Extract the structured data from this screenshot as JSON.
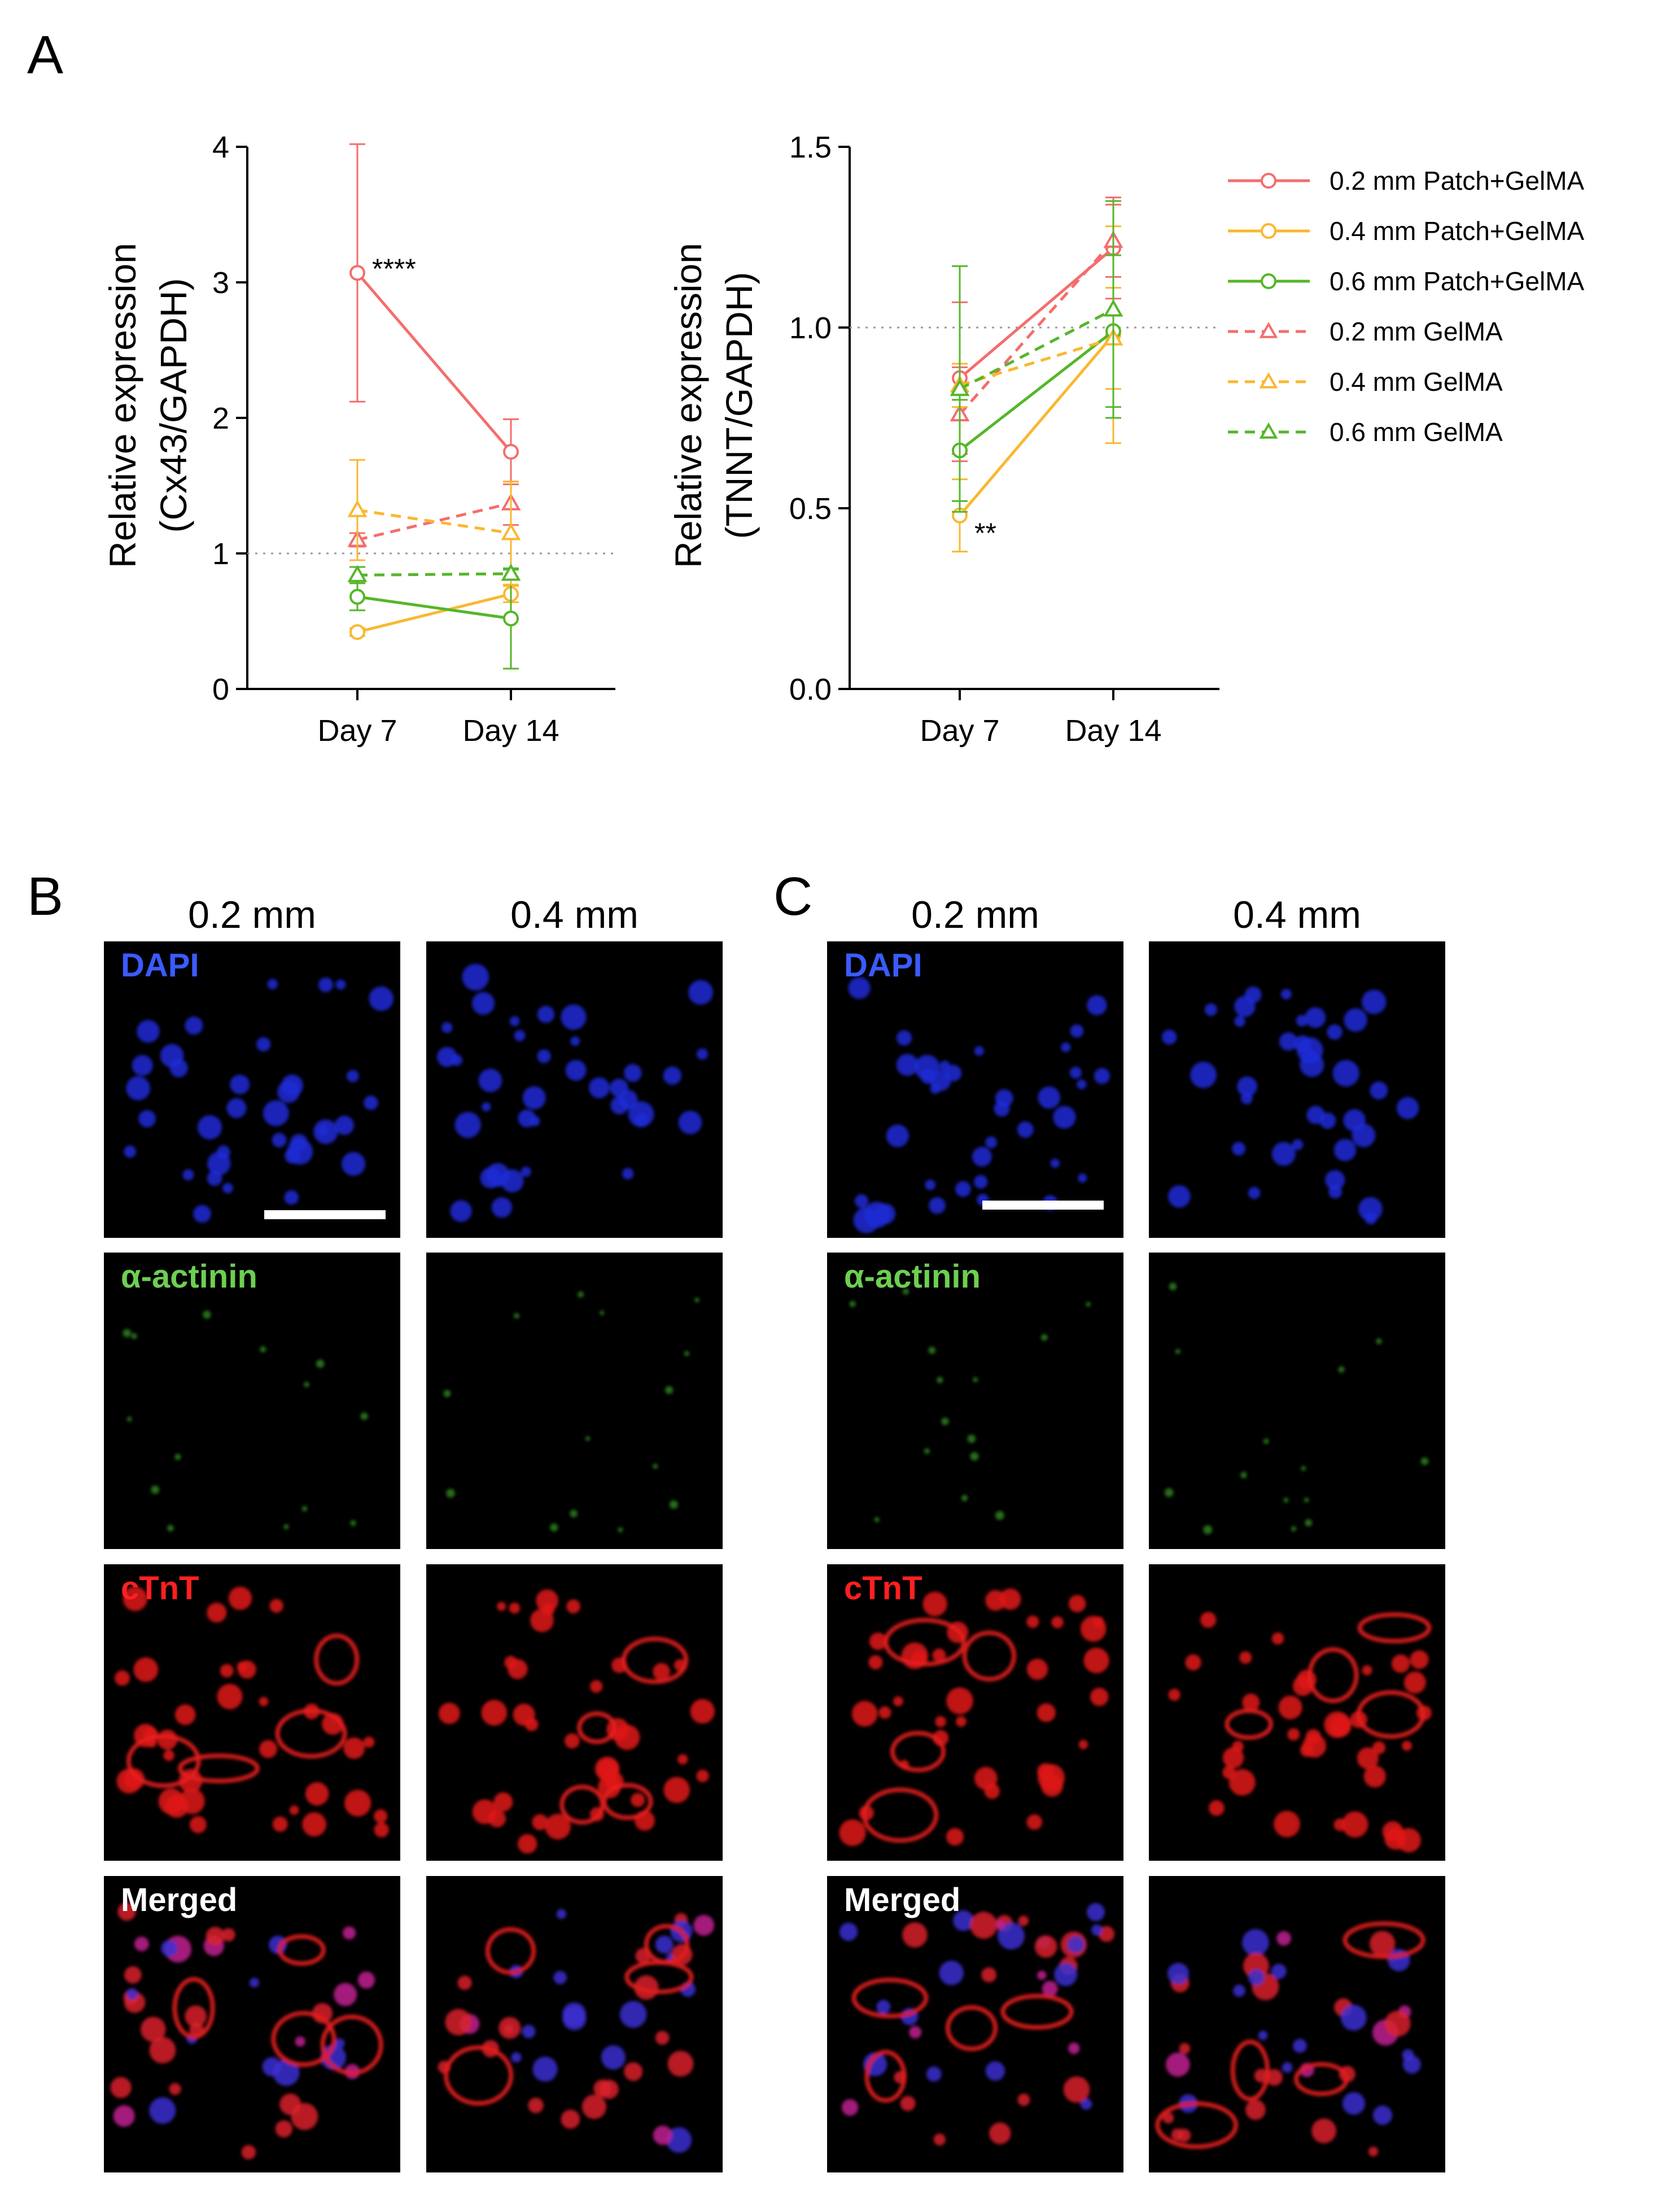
{
  "colors": {
    "patch_0_2": "#f46d6d",
    "patch_0_4": "#f9b830",
    "patch_0_6": "#55b629",
    "gel_0_2": "#f46d6d",
    "gel_0_4": "#f9b830",
    "gel_0_6": "#55b629",
    "dapi_label": "#3a5bff",
    "actinin_label": "#6dcf52",
    "ctnt_label": "#ff2020",
    "merged_label": "#ffffff"
  },
  "panels": {
    "A": "A",
    "B": "B",
    "C": "C"
  },
  "chart_data": [
    {
      "id": "cx43",
      "type": "line",
      "categories": [
        "Day 7",
        "Day 14"
      ],
      "ylabel_line1": "Relative expression",
      "ylabel_line2": "(Cx43/GAPDH)",
      "ylim": [
        0,
        4
      ],
      "yticks": [
        "0",
        "1",
        "2",
        "3",
        "4"
      ],
      "reference_line": 1,
      "series": [
        {
          "name": "0.2 mm Patch+GelMA",
          "color": "#f46d6d",
          "dash": false,
          "marker": "circle",
          "values": [
            3.07,
            1.75
          ],
          "err": [
            0.95,
            0.24
          ]
        },
        {
          "name": "0.4 mm Patch+GelMA",
          "color": "#f9b830",
          "dash": false,
          "marker": "circle",
          "values": [
            0.42,
            0.7
          ],
          "err": [
            0.03,
            0.06
          ]
        },
        {
          "name": "0.6 mm Patch+GelMA",
          "color": "#55b629",
          "dash": false,
          "marker": "circle",
          "values": [
            0.68,
            0.52
          ],
          "err": [
            0.1,
            0.37
          ]
        },
        {
          "name": "0.2 mm GelMA",
          "color": "#f46d6d",
          "dash": true,
          "marker": "triangle",
          "values": [
            1.1,
            1.37
          ],
          "err": [
            0.05,
            0.16
          ]
        },
        {
          "name": "0.4 mm GelMA",
          "color": "#f9b830",
          "dash": true,
          "marker": "triangle",
          "values": [
            1.32,
            1.15
          ],
          "err": [
            0.37,
            0.38
          ]
        },
        {
          "name": "0.6 mm GelMA",
          "color": "#55b629",
          "dash": true,
          "marker": "triangle",
          "values": [
            0.84,
            0.85
          ],
          "err": [
            0.06,
            0.03
          ]
        }
      ],
      "annotations": [
        {
          "text": "****",
          "category": 0,
          "y": 3.07
        }
      ]
    },
    {
      "id": "tnnt",
      "type": "line",
      "categories": [
        "Day 7",
        "Day 14"
      ],
      "ylabel_line1": "Relative expression",
      "ylabel_line2": "(TNNT/GAPDH)",
      "ylim": [
        0,
        1.5
      ],
      "yticks": [
        "0.0",
        "0.5",
        "1.0",
        "1.5"
      ],
      "reference_line": 1,
      "series": [
        {
          "name": "0.2 mm Patch+GelMA",
          "color": "#f46d6d",
          "dash": false,
          "marker": "circle",
          "values": [
            0.86,
            1.22
          ],
          "err": [
            0.21,
            0.14
          ]
        },
        {
          "name": "0.4 mm Patch+GelMA",
          "color": "#f9b830",
          "dash": false,
          "marker": "circle",
          "values": [
            0.48,
            0.98
          ],
          "err": [
            0.1,
            0.3
          ]
        },
        {
          "name": "0.6 mm Patch+GelMA",
          "color": "#55b629",
          "dash": false,
          "marker": "circle",
          "values": [
            0.66,
            0.99
          ],
          "err": [
            0.14,
            0.21
          ]
        },
        {
          "name": "0.2 mm GelMA",
          "color": "#f46d6d",
          "dash": true,
          "marker": "triangle",
          "values": [
            0.76,
            1.24
          ],
          "err": [
            0.13,
            0.1
          ]
        },
        {
          "name": "0.4 mm GelMA",
          "color": "#f9b830",
          "dash": true,
          "marker": "triangle",
          "values": [
            0.84,
            0.97
          ],
          "err": [
            0.06,
            0.14
          ]
        },
        {
          "name": "0.6 mm GelMA",
          "color": "#55b629",
          "dash": true,
          "marker": "triangle",
          "values": [
            0.83,
            1.05
          ],
          "err": [
            0.34,
            0.3
          ]
        }
      ],
      "annotations": [
        {
          "text": "**",
          "category": 0,
          "y": 0.48
        }
      ]
    }
  ],
  "legend": [
    "0.2 mm Patch+GelMA",
    "0.4 mm Patch+GelMA",
    "0.6 mm Patch+GelMA",
    "0.2 mm GelMA",
    "0.4 mm GelMA",
    "0.6 mm GelMA"
  ],
  "micrographs": {
    "column_headers": [
      "0.2 mm",
      "0.4 mm"
    ],
    "channels": [
      "DAPI",
      "α-actinin",
      "cTnT",
      "Merged"
    ]
  }
}
